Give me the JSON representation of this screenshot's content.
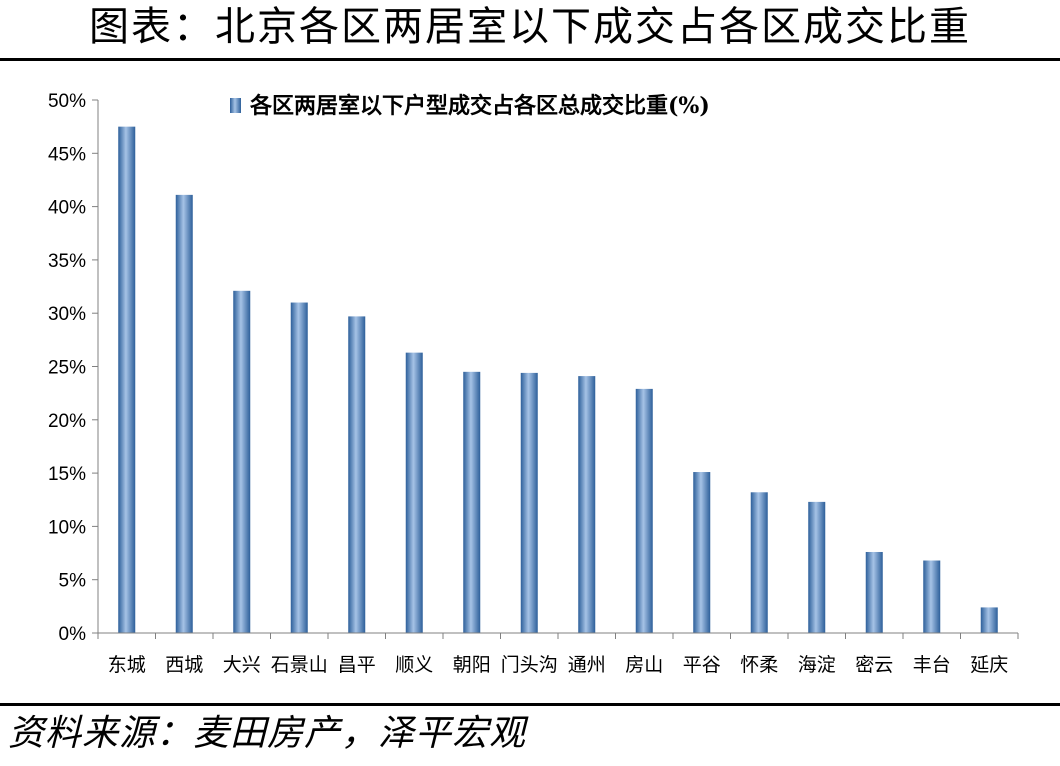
{
  "figure": {
    "title": "图表：北京各区两居室以下成交占各区成交比重",
    "source": "资料来源：麦田房产，泽平宏观"
  },
  "chart_data": {
    "type": "bar",
    "categories": [
      "东城",
      "西城",
      "大兴",
      "石景山",
      "昌平",
      "顺义",
      "朝阳",
      "门头沟",
      "通州",
      "房山",
      "平谷",
      "怀柔",
      "海淀",
      "密云",
      "丰台",
      "延庆"
    ],
    "series": [
      {
        "name": "各区两居室以下户型成交占各区总成交比重(%)",
        "values": [
          47.5,
          41.1,
          32.1,
          31.0,
          29.7,
          26.3,
          24.5,
          24.4,
          24.1,
          22.9,
          15.1,
          13.2,
          12.3,
          7.6,
          6.8,
          2.4
        ]
      }
    ],
    "y_ticks": [
      "0%",
      "5%",
      "10%",
      "15%",
      "20%",
      "25%",
      "30%",
      "35%",
      "40%",
      "45%",
      "50%"
    ],
    "ylim": [
      0,
      50
    ],
    "grid": false,
    "legend_position": "top"
  },
  "colors": {
    "bar_dark": "#2d5f9a",
    "bar_mid": "#5a8fcc",
    "bar_light": "#a6c3e6",
    "axis": "#808080"
  }
}
